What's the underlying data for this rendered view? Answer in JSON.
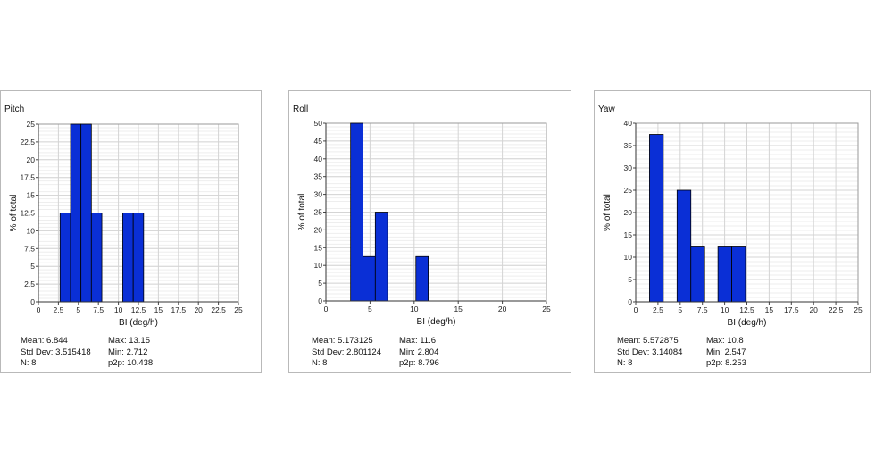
{
  "chart_data": [
    {
      "type": "bar",
      "title": "Pitch",
      "xlabel": "BI (deg/h)",
      "ylabel": "% of total",
      "xlim": [
        0,
        25
      ],
      "ylim": [
        0,
        25
      ],
      "xticks": [
        "0",
        "2.5",
        "5",
        "7.5",
        "10",
        "12.5",
        "15",
        "17.5",
        "20",
        "22.5",
        "25"
      ],
      "yticks": [
        "0",
        "2.5",
        "5",
        "7.5",
        "10",
        "12.5",
        "15",
        "17.5",
        "20",
        "22.5",
        "25"
      ],
      "grid": true,
      "bars": [
        {
          "x0": 2.71,
          "x1": 4.02,
          "value": 12.5
        },
        {
          "x0": 4.02,
          "x1": 5.32,
          "value": 25
        },
        {
          "x0": 5.32,
          "x1": 6.62,
          "value": 25
        },
        {
          "x0": 6.62,
          "x1": 7.93,
          "value": 12.5
        },
        {
          "x0": 10.54,
          "x1": 11.85,
          "value": 12.5
        },
        {
          "x0": 11.85,
          "x1": 13.15,
          "value": 12.5
        }
      ],
      "bar_color": "#0a2fd6",
      "stats": {
        "mean": "Mean: 6.844",
        "std": "Std Dev: 3.515418",
        "n": "N: 8",
        "max": "Max: 13.15",
        "min": "Min: 2.712",
        "p2p": "p2p: 10.438"
      }
    },
    {
      "type": "bar",
      "title": "Roll",
      "xlabel": "BI (deg/h)",
      "ylabel": "% of total",
      "xlim": [
        0,
        25
      ],
      "ylim": [
        0,
        50
      ],
      "xticks": [
        "0",
        "5",
        "10",
        "15",
        "20",
        "25"
      ],
      "yticks": [
        "0",
        "5",
        "10",
        "15",
        "20",
        "25",
        "30",
        "35",
        "40",
        "45",
        "50"
      ],
      "grid": true,
      "bars": [
        {
          "x0": 2.8,
          "x1": 4.2,
          "value": 50
        },
        {
          "x0": 4.2,
          "x1": 5.6,
          "value": 12.5
        },
        {
          "x0": 5.6,
          "x1": 7.0,
          "value": 25
        },
        {
          "x0": 10.2,
          "x1": 11.6,
          "value": 12.5
        }
      ],
      "bar_color": "#0a2fd6",
      "stats": {
        "mean": "Mean: 5.173125",
        "std": "Std Dev: 2.801124",
        "n": "N: 8",
        "max": "Max: 11.6",
        "min": "Min: 2.804",
        "p2p": "p2p: 8.796"
      }
    },
    {
      "type": "bar",
      "title": "Yaw",
      "xlabel": "BI (deg/h)",
      "ylabel": "% of total",
      "xlim": [
        0,
        25
      ],
      "ylim": [
        0,
        40
      ],
      "xticks": [
        "0",
        "2.5",
        "5",
        "7.5",
        "10",
        "12.5",
        "15",
        "17.5",
        "20",
        "22.5",
        "25"
      ],
      "yticks": [
        "0",
        "5",
        "10",
        "15",
        "20",
        "25",
        "30",
        "35",
        "40"
      ],
      "grid": true,
      "bars": [
        {
          "x0": 1.55,
          "x1": 3.1,
          "value": 37.5
        },
        {
          "x0": 4.65,
          "x1": 6.2,
          "value": 25
        },
        {
          "x0": 6.2,
          "x1": 7.75,
          "value": 12.5
        },
        {
          "x0": 9.25,
          "x1": 10.8,
          "value": 12.5
        },
        {
          "x0": 10.8,
          "x1": 12.35,
          "value": 12.5
        }
      ],
      "bar_color": "#0a2fd6",
      "stats": {
        "mean": "Mean: 5.572875",
        "std": "Std Dev: 3.14084",
        "n": "N: 8",
        "max": "Max: 10.8",
        "min": "Min: 2.547",
        "p2p": "p2p: 8.253"
      }
    }
  ]
}
